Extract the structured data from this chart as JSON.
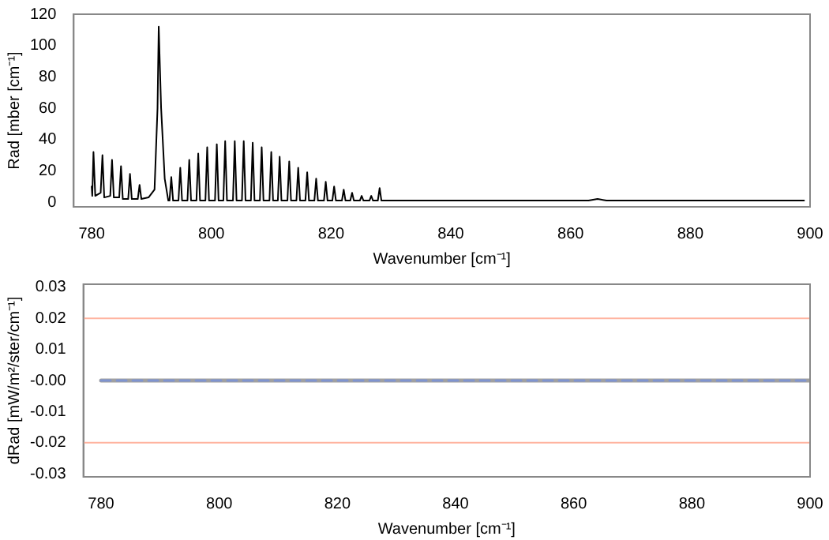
{
  "chart_data": [
    {
      "type": "line",
      "xlabel": "Wavenumber [cm⁻¹]",
      "ylabel": "Rad [mber [cm⁻¹]",
      "xlim": [
        777,
        900
      ],
      "xticks": [
        780,
        800,
        820,
        840,
        860,
        880,
        900
      ],
      "ylim": [
        -3,
        120
      ],
      "yticks": [
        0,
        20,
        40,
        60,
        80,
        100,
        120
      ],
      "grid": false,
      "legend": false,
      "marker": "none",
      "line_style": "solid",
      "series": [
        {
          "color": "#000000",
          "x": [
            780.0,
            780.1,
            780.3,
            780.6,
            781.5,
            781.8,
            782.1,
            783.1,
            783.4,
            783.7,
            784.6,
            784.9,
            785.2,
            786.1,
            786.4,
            786.7,
            787.7,
            788.0,
            788.3,
            789.5,
            790.5,
            791.0,
            791.2,
            791.6,
            792.2,
            792.8,
            793.0,
            793.3,
            793.6,
            794.5,
            794.8,
            795.1,
            796.0,
            796.3,
            796.6,
            797.5,
            797.8,
            798.1,
            799.0,
            799.3,
            799.6,
            800.6,
            800.9,
            801.2,
            802.0,
            802.3,
            802.6,
            803.6,
            803.9,
            804.2,
            805.1,
            805.4,
            805.7,
            806.6,
            806.9,
            807.2,
            808.1,
            808.4,
            808.7,
            809.7,
            810.0,
            810.3,
            811.1,
            811.4,
            811.7,
            812.7,
            813.0,
            813.3,
            814.2,
            814.5,
            814.8,
            815.7,
            816.0,
            816.3,
            817.2,
            817.5,
            817.8,
            818.8,
            819.1,
            819.4,
            820.2,
            820.5,
            820.8,
            821.8,
            822.1,
            822.4,
            823.2,
            823.5,
            823.8,
            824.8,
            825.1,
            825.4,
            826.4,
            826.7,
            827.0,
            827.8,
            828.1,
            828.4,
            830.0,
            835.0,
            863.0,
            864.5,
            866.0,
            899.0
          ],
          "values": [
            10,
            4,
            32,
            4,
            6,
            30,
            3,
            4,
            27,
            3,
            3,
            23,
            2,
            2,
            18,
            2,
            2,
            11,
            2,
            3,
            8,
            60,
            112,
            60,
            15,
            1,
            1,
            16,
            1,
            1,
            22,
            1,
            1,
            27,
            1,
            1,
            31,
            1,
            1,
            35,
            1,
            1,
            37,
            1,
            1,
            39,
            1,
            1,
            39,
            1,
            1,
            39,
            1,
            1,
            38,
            1,
            1,
            35,
            1,
            1,
            32,
            1,
            1,
            29,
            1,
            1,
            26,
            1,
            1,
            22,
            1,
            1,
            19,
            1,
            1,
            15,
            1,
            1,
            13,
            1,
            1,
            10,
            1,
            1,
            8,
            1,
            1,
            6,
            1,
            1,
            4,
            1,
            1,
            4,
            1,
            1,
            9,
            1,
            1,
            1,
            1,
            2,
            1,
            1
          ]
        }
      ]
    },
    {
      "type": "line",
      "xlabel": "Wavenumber [cm⁻¹]",
      "ylabel": "dRad [mW/m²/ster/cm⁻¹]",
      "xlim": [
        777,
        900
      ],
      "xticks": [
        780,
        800,
        820,
        840,
        860,
        880,
        900
      ],
      "ylim": [
        -0.031,
        0.031
      ],
      "yticks": [
        -0.03,
        -0.02,
        -0.01,
        {
          "value": 0,
          "label": "-0.00"
        },
        0.01,
        0.02,
        0.03
      ],
      "grid": false,
      "legend": false,
      "marker": "none",
      "ref_lines": [
        {
          "axis": "y",
          "value": 0.02,
          "color": "#ffb4a0"
        },
        {
          "axis": "y",
          "value": -0.02,
          "color": "#ffb4a0"
        }
      ],
      "series": [
        {
          "color": "#a0a0a0",
          "line_style": "solid",
          "x": [
            780,
            900
          ],
          "values": [
            0,
            0
          ]
        },
        {
          "color": "#7f94d0",
          "line_style": "dashed",
          "x": [
            780,
            900
          ],
          "values": [
            0,
            0
          ]
        }
      ]
    }
  ]
}
